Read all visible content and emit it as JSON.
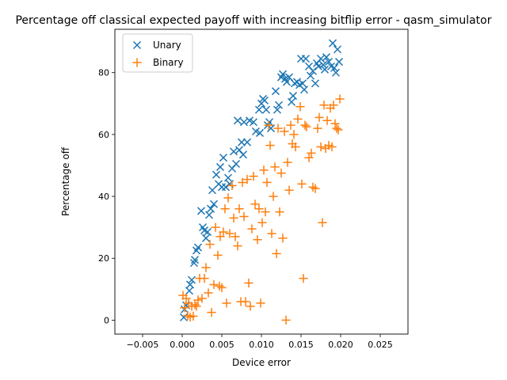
{
  "chart_data": {
    "type": "scatter",
    "title": "Percentage off classical expected payoff with increasing bitflip error - qasm_simulator",
    "xlabel": "Device error",
    "ylabel": "Percentage off",
    "xlim": [
      -0.0085,
      0.0285
    ],
    "ylim": [
      -4.5,
      94
    ],
    "xticks": [
      -0.005,
      0.0,
      0.005,
      0.01,
      0.015,
      0.02,
      0.025
    ],
    "xtick_labels": [
      "−0.005",
      "0.000",
      "0.005",
      "0.010",
      "0.015",
      "0.020",
      "0.025"
    ],
    "yticks": [
      0,
      20,
      40,
      60,
      80
    ],
    "ytick_labels": [
      "0",
      "20",
      "40",
      "60",
      "80"
    ],
    "grid": false,
    "legend": {
      "placement": "upper-left"
    },
    "series": [
      {
        "name": "Unary",
        "marker": "x",
        "color": "#1f77b4",
        "points": [
          [
            0.0002,
            0.9
          ],
          [
            0.0003,
            3.5
          ],
          [
            0.0005,
            4.8
          ],
          [
            0.0009,
            9.5
          ],
          [
            0.001,
            11.5
          ],
          [
            0.0012,
            13
          ],
          [
            0.0015,
            18.5
          ],
          [
            0.0016,
            19.5
          ],
          [
            0.0018,
            22.5
          ],
          [
            0.002,
            23.5
          ],
          [
            0.0024,
            35.3
          ],
          [
            0.0026,
            30
          ],
          [
            0.0028,
            29
          ],
          [
            0.003,
            26.5
          ],
          [
            0.0032,
            28.5
          ],
          [
            0.0034,
            34
          ],
          [
            0.0036,
            36
          ],
          [
            0.0038,
            42
          ],
          [
            0.004,
            37.5
          ],
          [
            0.0043,
            47
          ],
          [
            0.0046,
            44
          ],
          [
            0.0048,
            49.5
          ],
          [
            0.005,
            43
          ],
          [
            0.0052,
            52.5
          ],
          [
            0.0055,
            43
          ],
          [
            0.0058,
            46
          ],
          [
            0.006,
            44
          ],
          [
            0.0063,
            49
          ],
          [
            0.0065,
            54.5
          ],
          [
            0.0068,
            50.5
          ],
          [
            0.007,
            64.5
          ],
          [
            0.0072,
            55
          ],
          [
            0.0075,
            57.5
          ],
          [
            0.0077,
            53.5
          ],
          [
            0.0078,
            64
          ],
          [
            0.0082,
            57.5
          ],
          [
            0.0085,
            64.5
          ],
          [
            0.009,
            64
          ],
          [
            0.0093,
            61
          ],
          [
            0.0097,
            68
          ],
          [
            0.0098,
            60.5
          ],
          [
            0.01,
            70
          ],
          [
            0.0102,
            71.5
          ],
          [
            0.0104,
            71
          ],
          [
            0.0106,
            68
          ],
          [
            0.0108,
            63
          ],
          [
            0.011,
            64
          ],
          [
            0.0112,
            62
          ],
          [
            0.0118,
            74
          ],
          [
            0.012,
            68
          ],
          [
            0.0122,
            69.5
          ],
          [
            0.0125,
            78.5
          ],
          [
            0.0127,
            79.5
          ],
          [
            0.013,
            78
          ],
          [
            0.0132,
            77
          ],
          [
            0.0135,
            78.5
          ],
          [
            0.0138,
            70.5
          ],
          [
            0.014,
            72.5
          ],
          [
            0.0142,
            76.5
          ],
          [
            0.0145,
            77
          ],
          [
            0.0148,
            76
          ],
          [
            0.015,
            84.5
          ],
          [
            0.0152,
            76.5
          ],
          [
            0.0154,
            74.5
          ],
          [
            0.0156,
            84.5
          ],
          [
            0.016,
            82
          ],
          [
            0.0162,
            79
          ],
          [
            0.0165,
            80.5
          ],
          [
            0.0168,
            76.5
          ],
          [
            0.017,
            83
          ],
          [
            0.0172,
            82
          ],
          [
            0.0175,
            84.5
          ],
          [
            0.0178,
            82.5
          ],
          [
            0.018,
            81
          ],
          [
            0.0182,
            85
          ],
          [
            0.0185,
            83.5
          ],
          [
            0.0188,
            82
          ],
          [
            0.019,
            89.5
          ],
          [
            0.0192,
            81.5
          ],
          [
            0.0194,
            80
          ],
          [
            0.0196,
            87.5
          ],
          [
            0.0198,
            83.5
          ]
        ]
      },
      {
        "name": "Binary",
        "marker": "+",
        "color": "#ff7f0e",
        "points": [
          [
            0.0001,
            8
          ],
          [
            0.0003,
            4
          ],
          [
            0.0005,
            7
          ],
          [
            0.0007,
            1.5
          ],
          [
            0.0008,
            5.5
          ],
          [
            0.001,
            1
          ],
          [
            0.0012,
            4.5
          ],
          [
            0.0014,
            1.3
          ],
          [
            0.0016,
            5
          ],
          [
            0.0018,
            4.5
          ],
          [
            0.002,
            6.5
          ],
          [
            0.0022,
            13.5
          ],
          [
            0.0025,
            7
          ],
          [
            0.0028,
            13.5
          ],
          [
            0.003,
            17
          ],
          [
            0.0033,
            8.8
          ],
          [
            0.0035,
            24.5
          ],
          [
            0.0037,
            2.5
          ],
          [
            0.004,
            11.5
          ],
          [
            0.0042,
            30
          ],
          [
            0.0045,
            21
          ],
          [
            0.0047,
            11
          ],
          [
            0.0048,
            27
          ],
          [
            0.005,
            10.5
          ],
          [
            0.0052,
            28.5
          ],
          [
            0.0054,
            36
          ],
          [
            0.0056,
            5.5
          ],
          [
            0.0058,
            39.5
          ],
          [
            0.006,
            28
          ],
          [
            0.0063,
            43.5
          ],
          [
            0.0065,
            33
          ],
          [
            0.0067,
            27
          ],
          [
            0.007,
            24
          ],
          [
            0.0072,
            36
          ],
          [
            0.0074,
            6
          ],
          [
            0.0076,
            44.5
          ],
          [
            0.0078,
            33.5
          ],
          [
            0.008,
            6
          ],
          [
            0.0082,
            45.5
          ],
          [
            0.0084,
            12
          ],
          [
            0.0086,
            4.5
          ],
          [
            0.0088,
            29.5
          ],
          [
            0.009,
            46.5
          ],
          [
            0.0092,
            37.5
          ],
          [
            0.0095,
            26
          ],
          [
            0.0097,
            36
          ],
          [
            0.0099,
            5.5
          ],
          [
            0.0101,
            31.5
          ],
          [
            0.0103,
            48.5
          ],
          [
            0.0105,
            35
          ],
          [
            0.0107,
            44.5
          ],
          [
            0.0109,
            63
          ],
          [
            0.0111,
            56.5
          ],
          [
            0.0113,
            28
          ],
          [
            0.0115,
            40
          ],
          [
            0.0117,
            49.5
          ],
          [
            0.0119,
            21.5
          ],
          [
            0.0121,
            62
          ],
          [
            0.0123,
            35
          ],
          [
            0.0125,
            47.5
          ],
          [
            0.0127,
            26.5
          ],
          [
            0.0129,
            61
          ],
          [
            0.0131,
            0
          ],
          [
            0.0133,
            51
          ],
          [
            0.0135,
            42
          ],
          [
            0.0137,
            63
          ],
          [
            0.0139,
            57
          ],
          [
            0.0141,
            60
          ],
          [
            0.0143,
            56
          ],
          [
            0.0146,
            65
          ],
          [
            0.0149,
            69
          ],
          [
            0.0151,
            44
          ],
          [
            0.0153,
            13.5
          ],
          [
            0.0155,
            63
          ],
          [
            0.0157,
            62.5
          ],
          [
            0.016,
            52.5
          ],
          [
            0.0163,
            54
          ],
          [
            0.0165,
            43
          ],
          [
            0.0168,
            42.5
          ],
          [
            0.0171,
            62
          ],
          [
            0.0173,
            65.5
          ],
          [
            0.0175,
            56
          ],
          [
            0.0177,
            31.5
          ],
          [
            0.0179,
            69.5
          ],
          [
            0.0181,
            55.5
          ],
          [
            0.0183,
            64.5
          ],
          [
            0.0185,
            56.5
          ],
          [
            0.0187,
            68.5
          ],
          [
            0.0189,
            56
          ],
          [
            0.0191,
            69.5
          ],
          [
            0.0193,
            63.5
          ],
          [
            0.0195,
            62
          ],
          [
            0.0197,
            61.5
          ],
          [
            0.0199,
            71.5
          ]
        ]
      }
    ]
  }
}
